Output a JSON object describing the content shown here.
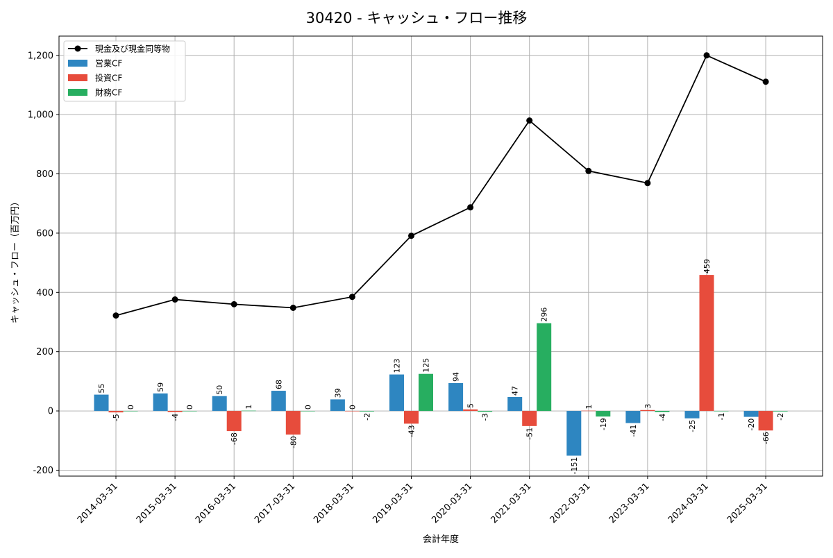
{
  "chart_data": {
    "type": "bar+line",
    "title": "30420 - キャッシュ・フロー推移",
    "xlabel": "会計年度",
    "ylabel": "キャッシュ・フロー（百万円）",
    "ylim": [
      -220,
      1265
    ],
    "yticks": [
      -200,
      0,
      200,
      400,
      600,
      800,
      1000,
      1200
    ],
    "ytick_labels": [
      "-200",
      "0",
      "200",
      "400",
      "600",
      "800",
      "1,000",
      "1,200"
    ],
    "grid": true,
    "legend_position": "top-left",
    "categories": [
      "2014-03-31",
      "2015-03-31",
      "2016-03-31",
      "2017-03-31",
      "2018-03-31",
      "2019-03-31",
      "2020-03-31",
      "2021-03-31",
      "2022-03-31",
      "2023-03-31",
      "2024-03-31",
      "2025-03-31"
    ],
    "line": {
      "name": "現金及び現金同等物",
      "color": "#000000",
      "values": [
        322,
        376,
        360,
        348,
        385,
        591,
        687,
        980,
        810,
        769,
        1200,
        1111
      ]
    },
    "series": [
      {
        "name": "営業CF",
        "color": "#2e86c1",
        "values": [
          55,
          59,
          50,
          68,
          39,
          123,
          94,
          47,
          -151,
          -41,
          -25,
          -20
        ]
      },
      {
        "name": "投資CF",
        "color": "#e74c3c",
        "values": [
          -5,
          -4,
          -68,
          -80,
          0,
          -43,
          5,
          -51,
          1,
          3,
          459,
          -66
        ]
      },
      {
        "name": "財務CF",
        "color": "#27ae60",
        "values": [
          0,
          0,
          1,
          0,
          -2,
          125,
          -3,
          296,
          -19,
          -4,
          -1,
          -2
        ]
      }
    ]
  }
}
